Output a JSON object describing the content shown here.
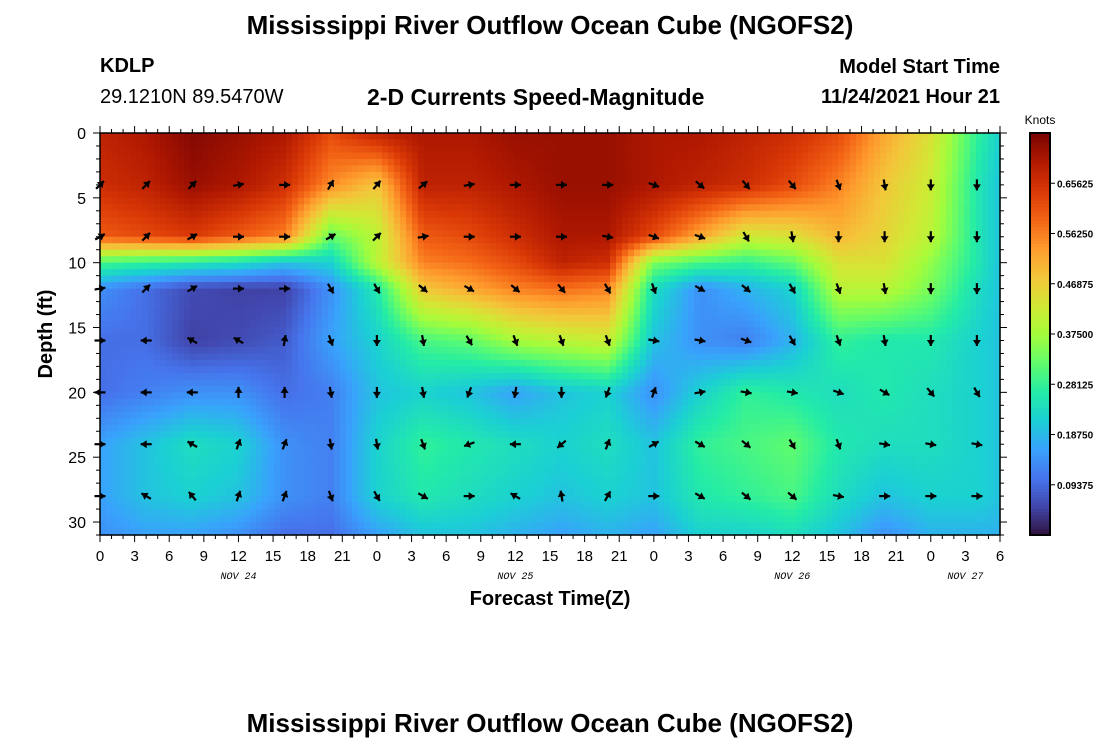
{
  "header": {
    "title": "Mississippi River Outflow Ocean Cube (NGOFS2)",
    "station": "KDLP",
    "coords": "29.1210N  89.5470W",
    "subtitle": "2-D Currents Speed-Magnitude",
    "model_start_label": "Model Start Time",
    "model_start_value": "11/24/2021 Hour 21"
  },
  "footer": {
    "title_repeat": "Mississippi River Outflow Ocean Cube (NGOFS2)"
  },
  "chart_data": {
    "type": "heatmap",
    "title": "Mississippi River Outflow Ocean Cube (NGOFS2)",
    "subtitle": "2-D Currents Speed-Magnitude",
    "xlabel": "Forecast Time(Z)",
    "ylabel": "Depth (ft)",
    "colorbar_label": "Knots",
    "colorbar_ticks": [
      "0.09375",
      "0.18750",
      "0.28125",
      "0.37500",
      "0.46875",
      "0.56250",
      "0.65625"
    ],
    "colorbar_range": [
      0,
      0.75
    ],
    "x_range_hours": [
      0,
      78
    ],
    "x_tick_labels": [
      "0",
      "3",
      "6",
      "9",
      "12",
      "15",
      "18",
      "21",
      "0",
      "3",
      "6",
      "9",
      "12",
      "15",
      "18",
      "21",
      "0",
      "3",
      "6",
      "9",
      "12",
      "15",
      "18",
      "21",
      "0",
      "3",
      "6"
    ],
    "date_labels": [
      {
        "text": "NOV 24",
        "hour": 12
      },
      {
        "text": "NOV 25",
        "hour": 36
      },
      {
        "text": "NOV 26",
        "hour": 60
      },
      {
        "text": "NOV 27",
        "hour": 75
      }
    ],
    "y_range": [
      0,
      31
    ],
    "y_ticks": [
      0,
      5,
      10,
      15,
      20,
      25,
      30
    ],
    "inverted_y": true,
    "colormap": [
      "#30123b",
      "#4145ab",
      "#4675ed",
      "#39a2fc",
      "#1bcfd4",
      "#24eca6",
      "#61fc6c",
      "#a4fc3b",
      "#d1e834",
      "#f3c63a",
      "#fe9b2d",
      "#f36315",
      "#d93806",
      "#b11901",
      "#7a0402"
    ],
    "speed_knots": {
      "times": [
        0,
        4,
        8,
        12,
        16,
        20,
        24,
        28,
        32,
        36,
        40,
        44,
        48,
        52,
        56,
        60,
        64,
        68,
        72,
        76,
        78
      ],
      "depths": [
        0,
        4,
        8,
        10,
        12,
        16,
        20,
        24,
        28,
        31
      ],
      "grid": [
        [
          0.68,
          0.7,
          0.74,
          0.72,
          0.7,
          0.62,
          0.68,
          0.7,
          0.7,
          0.72,
          0.72,
          0.72,
          0.7,
          0.7,
          0.68,
          0.66,
          0.62,
          0.52,
          0.44,
          0.28,
          0.22
        ],
        [
          0.66,
          0.68,
          0.72,
          0.7,
          0.66,
          0.55,
          0.48,
          0.68,
          0.68,
          0.7,
          0.72,
          0.72,
          0.7,
          0.68,
          0.66,
          0.62,
          0.56,
          0.48,
          0.42,
          0.26,
          0.2
        ],
        [
          0.6,
          0.62,
          0.64,
          0.6,
          0.56,
          0.32,
          0.4,
          0.6,
          0.62,
          0.66,
          0.7,
          0.7,
          0.62,
          0.52,
          0.42,
          0.44,
          0.5,
          0.46,
          0.4,
          0.26,
          0.2
        ],
        [
          0.3,
          0.28,
          0.26,
          0.24,
          0.2,
          0.22,
          0.4,
          0.56,
          0.58,
          0.62,
          0.68,
          0.66,
          0.34,
          0.3,
          0.28,
          0.32,
          0.44,
          0.44,
          0.36,
          0.26,
          0.2
        ],
        [
          0.14,
          0.1,
          0.06,
          0.05,
          0.05,
          0.14,
          0.26,
          0.48,
          0.52,
          0.56,
          0.58,
          0.56,
          0.24,
          0.14,
          0.18,
          0.22,
          0.4,
          0.4,
          0.34,
          0.24,
          0.2
        ],
        [
          0.1,
          0.1,
          0.05,
          0.06,
          0.08,
          0.16,
          0.22,
          0.3,
          0.32,
          0.38,
          0.4,
          0.42,
          0.2,
          0.14,
          0.12,
          0.18,
          0.28,
          0.26,
          0.26,
          0.22,
          0.2
        ],
        [
          0.1,
          0.12,
          0.14,
          0.14,
          0.1,
          0.12,
          0.2,
          0.22,
          0.2,
          0.16,
          0.2,
          0.22,
          0.14,
          0.22,
          0.28,
          0.26,
          0.24,
          0.26,
          0.24,
          0.22,
          0.2
        ],
        [
          0.16,
          0.2,
          0.24,
          0.22,
          0.14,
          0.12,
          0.22,
          0.28,
          0.26,
          0.24,
          0.22,
          0.24,
          0.2,
          0.28,
          0.3,
          0.32,
          0.26,
          0.24,
          0.24,
          0.22,
          0.2
        ],
        [
          0.16,
          0.2,
          0.22,
          0.2,
          0.14,
          0.12,
          0.22,
          0.26,
          0.24,
          0.22,
          0.2,
          0.22,
          0.2,
          0.26,
          0.28,
          0.3,
          0.24,
          0.2,
          0.22,
          0.22,
          0.2
        ],
        [
          0.14,
          0.16,
          0.16,
          0.14,
          0.1,
          0.1,
          0.16,
          0.2,
          0.2,
          0.18,
          0.16,
          0.18,
          0.16,
          0.22,
          0.22,
          0.24,
          0.2,
          0.14,
          0.18,
          0.18,
          0.18
        ]
      ]
    },
    "current_direction_deg": {
      "times": [
        0,
        4,
        8,
        12,
        16,
        20,
        24,
        28,
        32,
        36,
        40,
        44,
        48,
        52,
        56,
        60,
        64,
        68,
        72,
        76
      ],
      "depths": [
        4,
        8,
        12,
        16,
        20,
        24,
        28
      ],
      "grid": [
        [
          45,
          45,
          45,
          80,
          90,
          30,
          40,
          50,
          80,
          90,
          90,
          90,
          110,
          130,
          140,
          140,
          160,
          170,
          180,
          180
        ],
        [
          60,
          45,
          60,
          90,
          90,
          60,
          45,
          80,
          90,
          90,
          90,
          100,
          110,
          110,
          150,
          170,
          180,
          180,
          180,
          180
        ],
        [
          80,
          45,
          60,
          90,
          90,
          150,
          150,
          130,
          120,
          130,
          140,
          150,
          160,
          120,
          130,
          150,
          160,
          170,
          180,
          180
        ],
        [
          90,
          270,
          300,
          300,
          10,
          160,
          180,
          170,
          150,
          160,
          160,
          160,
          100,
          100,
          110,
          150,
          160,
          170,
          180,
          180
        ],
        [
          270,
          270,
          270,
          0,
          0,
          170,
          180,
          170,
          200,
          190,
          180,
          200,
          20,
          80,
          100,
          100,
          110,
          120,
          140,
          150
        ],
        [
          90,
          270,
          300,
          20,
          20,
          170,
          170,
          160,
          250,
          270,
          230,
          20,
          60,
          120,
          130,
          150,
          160,
          100,
          100,
          100
        ],
        [
          90,
          300,
          320,
          20,
          20,
          160,
          150,
          120,
          90,
          300,
          350,
          30,
          90,
          120,
          130,
          130,
          100,
          90,
          90,
          90
        ]
      ]
    }
  }
}
